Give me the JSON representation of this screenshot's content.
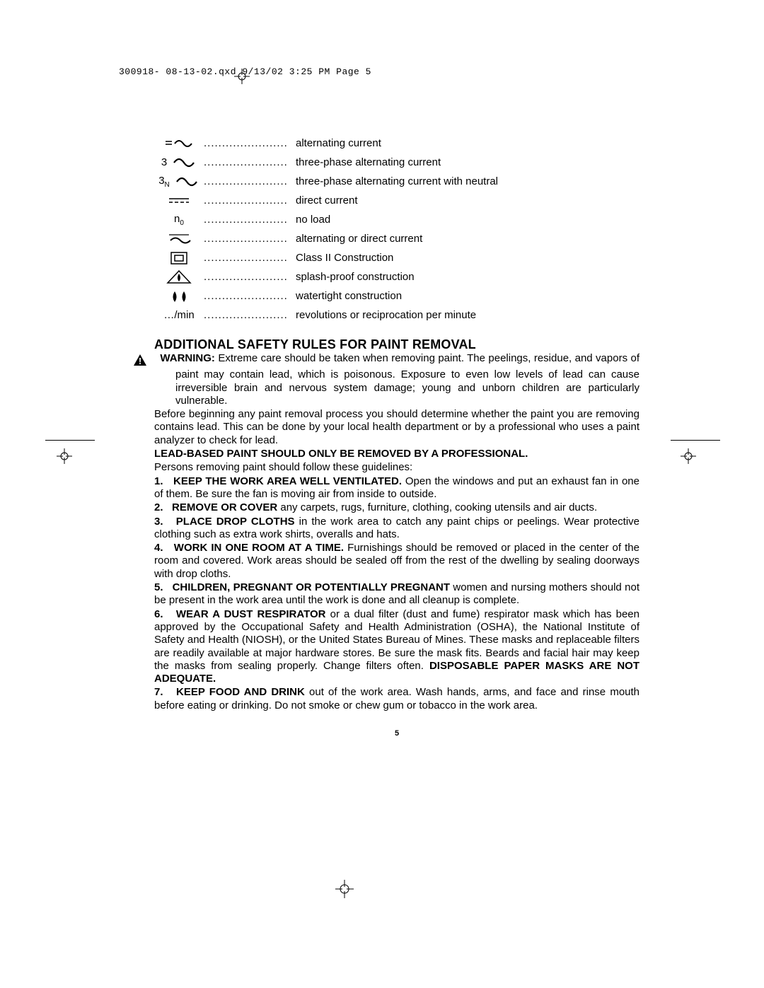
{
  "header": "300918- 08-13-02.qxd  9/13/02  3:25 PM  Page 5",
  "symbols": [
    {
      "label": "alternating current",
      "icon": "ac"
    },
    {
      "label": "three-phase alternating current",
      "icon": "ac3",
      "prefix": "3"
    },
    {
      "label": "three-phase alternating current with neutral",
      "icon": "ac3n",
      "prefix": "3",
      "prefixSub": "N"
    },
    {
      "label": "direct current",
      "icon": "dc"
    },
    {
      "label": "no load",
      "icon": "n0",
      "text": "n",
      "textSub": "0"
    },
    {
      "label": "alternating or direct current",
      "icon": "acdc"
    },
    {
      "label": "Class II Construction",
      "icon": "class2"
    },
    {
      "label": "splash-proof construction",
      "icon": "splash"
    },
    {
      "label": "watertight construction",
      "icon": "water"
    },
    {
      "label": "revolutions or reciprocation per minute",
      "icon": "permin",
      "text": "…/min"
    }
  ],
  "sectionTitle": "ADDITIONAL SAFETY RULES FOR PAINT REMOVAL",
  "warningLabel": "WARNING:",
  "warningBody": "Extreme care should be taken when removing paint. The peelings, residue, and vapors of paint may contain lead, which is poisonous. Exposure to even low levels of lead can cause irreversible brain and nervous system damage; young and unborn children are particularly vulnerable.",
  "para2": "Before beginning any paint removal process you should determine whether the paint you are removing contains lead. This can be done by your local health department or by a professional who uses a paint analyzer to check for lead.",
  "leadBold": "LEAD-BASED PAINT SHOULD ONLY BE REMOVED BY A PROFESSIONAL.",
  "guidelinesIntro": "Persons removing paint should follow these guidelines:",
  "items": [
    {
      "n": "1.",
      "bold": "KEEP THE WORK AREA WELL VENTILATED.",
      "rest": " Open the windows and put an exhaust fan in one of them. Be sure the fan is moving air from inside to outside."
    },
    {
      "n": "2.",
      "bold": "REMOVE OR COVER",
      "rest": " any carpets, rugs, furniture, clothing, cooking utensils and air ducts."
    },
    {
      "n": "3.",
      "bold": "PLACE DROP CLOTHS",
      "rest": " in the work area to catch any paint chips or peelings. Wear protective clothing such as extra work shirts, overalls and hats."
    },
    {
      "n": "4.",
      "bold": "WORK IN ONE ROOM AT A TIME.",
      "rest": " Furnishings should be removed or placed in the center of the room and covered. Work areas should be sealed off from the rest of the dwelling by sealing doorways with drop cloths."
    },
    {
      "n": "5.",
      "bold": "CHILDREN, PREGNANT OR POTENTIALLY PREGNANT",
      "rest": " women and nursing mothers should not be present in the work area until the work is done and all cleanup is complete."
    },
    {
      "n": "6.",
      "bold": "WEAR A DUST RESPIRATOR",
      "rest": " or a dual filter (dust and fume) respirator mask which has been approved by the Occupational Safety and Health Administration (OSHA), the National Institute of Safety and Health (NIOSH), or the United States Bureau of Mines. These masks and replaceable filters are readily available at major hardware stores. Be sure the mask fits. Beards and facial hair may keep the masks from sealing properly. Change filters often. ",
      "boldTail": "DISPOSABLE PAPER MASKS ARE NOT ADEQUATE."
    },
    {
      "n": "7.",
      "bold": "KEEP FOOD AND DRINK",
      "rest": " out of the work area. Wash hands, arms, and face and rinse mouth before eating or drinking. Do not smoke or chew gum or tobacco in the work area."
    }
  ],
  "pageNumber": "5",
  "colors": {
    "text": "#000000",
    "background": "#ffffff"
  },
  "dots": ".........................."
}
